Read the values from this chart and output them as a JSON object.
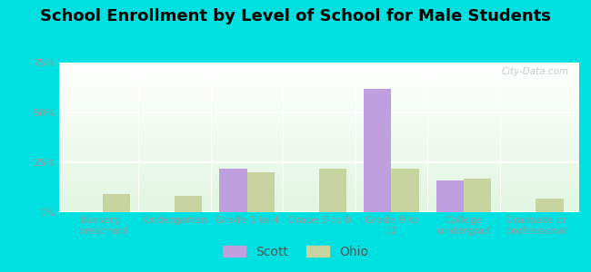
{
  "title": "School Enrollment by Level of School for Male Students",
  "categories": [
    "Nursery,\npreschool",
    "Kindergarten",
    "Grade 1 to 4",
    "Grade 5 to 8",
    "Grade 9 to\n12",
    "College\nundergrad",
    "Graduate or\nprofessional"
  ],
  "scott_values": [
    0,
    0,
    22,
    0,
    62,
    16,
    0
  ],
  "ohio_values": [
    9,
    8,
    20,
    22,
    22,
    17,
    7
  ],
  "scott_color": "#bf9fdf",
  "ohio_color": "#c8d4a0",
  "background_color": "#00e0e0",
  "ylim": [
    0,
    75
  ],
  "yticks": [
    0,
    25,
    50,
    75
  ],
  "ytick_labels": [
    "0%",
    "25%",
    "50%",
    "75%"
  ],
  "title_fontsize": 13,
  "tick_fontsize": 8,
  "legend_fontsize": 10,
  "bar_width": 0.38,
  "figsize": [
    6.5,
    3.0
  ],
  "dpi": 100
}
